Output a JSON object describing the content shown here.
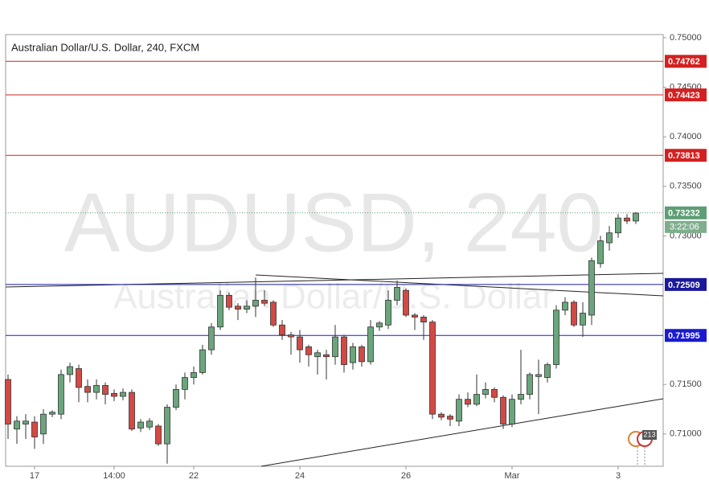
{
  "chart_data": {
    "type": "candlestick",
    "title": "Australian Dollar/U.S. Dollar, 240, FXCM",
    "watermark": "AUDUSD, 240",
    "watermark_subtitle": "Australian Dollar/U.S. Dollar",
    "up_color": "#6ba57c",
    "down_color": "#d24a45",
    "categories": [
      null,
      null,
      null,
      "17",
      null,
      null,
      null,
      null,
      null,
      null,
      null,
      null,
      "14:00",
      null,
      null,
      null,
      null,
      null,
      null,
      null,
      null,
      "22",
      null,
      null,
      null,
      null,
      null,
      null,
      null,
      null,
      null,
      null,
      null,
      "24",
      null,
      null,
      null,
      null,
      null,
      null,
      null,
      null,
      null,
      null,
      null,
      "26",
      null,
      null,
      null,
      null,
      null,
      null,
      null,
      null,
      null,
      null,
      null,
      "Mar",
      null,
      null,
      null,
      null,
      null,
      null,
      null,
      null,
      null,
      null,
      null,
      "3",
      null,
      null
    ],
    "open": [
      0.7155,
      0.7105,
      0.711,
      0.7112,
      0.71,
      0.712,
      0.712,
      0.716,
      0.7166,
      0.7148,
      0.7142,
      0.7149,
      0.7141,
      0.7138,
      0.7142,
      0.7106,
      0.7107,
      0.7108,
      0.709,
      0.7127,
      0.7145,
      0.7157,
      0.7162,
      0.7185,
      0.7208,
      0.724,
      0.7229,
      0.7226,
      0.7229,
      0.7235,
      0.7233,
      0.721,
      0.72,
      0.7198,
      0.7188,
      0.7178,
      0.718,
      0.7178,
      0.7198,
      0.7172,
      0.7188,
      0.7173,
      0.7208,
      0.721,
      0.7235,
      0.7245,
      0.722,
      0.7218,
      0.7213,
      0.712,
      0.7118,
      0.7113,
      0.7135,
      0.713,
      0.714,
      0.7145,
      0.7137,
      0.711,
      0.7135,
      0.714,
      0.7158,
      0.7157,
      0.717,
      0.7225,
      0.7233,
      0.721,
      0.722,
      0.7272,
      0.7293,
      0.7303,
      0.7318,
      0.7315
    ],
    "high": [
      0.716,
      0.7118,
      0.712,
      0.7118,
      0.7125,
      0.7124,
      0.7165,
      0.7172,
      0.717,
      0.7155,
      0.7155,
      0.7152,
      0.7145,
      0.7146,
      0.7145,
      0.7115,
      0.7116,
      0.711,
      0.713,
      0.715,
      0.7162,
      0.7168,
      0.719,
      0.7212,
      0.7245,
      0.7243,
      0.7232,
      0.7235,
      0.7258,
      0.7245,
      0.7235,
      0.7215,
      0.7203,
      0.7205,
      0.719,
      0.7185,
      0.7185,
      0.721,
      0.72,
      0.7192,
      0.719,
      0.7215,
      0.7214,
      0.7245,
      0.7255,
      0.7247,
      0.7222,
      0.722,
      0.7215,
      0.7122,
      0.712,
      0.714,
      0.7142,
      0.716,
      0.7152,
      0.7147,
      0.7139,
      0.714,
      0.7185,
      0.7162,
      0.7175,
      0.7172,
      0.723,
      0.7238,
      0.7235,
      0.7233,
      0.7278,
      0.73,
      0.731,
      0.7322,
      0.7322,
      0.7324
    ],
    "low": [
      0.7095,
      0.709,
      0.7095,
      0.7085,
      0.709,
      0.7117,
      0.7115,
      0.7152,
      0.7132,
      0.7132,
      0.7135,
      0.713,
      0.7133,
      0.7134,
      0.7103,
      0.7102,
      0.7104,
      0.7088,
      0.707,
      0.7124,
      0.7135,
      0.715,
      0.716,
      0.718,
      0.7205,
      0.7225,
      0.7215,
      0.7222,
      0.7218,
      0.7229,
      0.7208,
      0.7195,
      0.718,
      0.7172,
      0.7168,
      0.716,
      0.7155,
      0.717,
      0.7162,
      0.7165,
      0.7168,
      0.717,
      0.7204,
      0.7206,
      0.723,
      0.7218,
      0.7205,
      0.7195,
      0.7115,
      0.7114,
      0.7108,
      0.7108,
      0.7127,
      0.7128,
      0.7136,
      0.7132,
      0.7105,
      0.7107,
      0.713,
      0.7135,
      0.712,
      0.7152,
      0.7166,
      0.722,
      0.7208,
      0.7198,
      0.721,
      0.7268,
      0.7285,
      0.7298,
      0.7312,
      0.7312
    ],
    "close": [
      0.711,
      0.7113,
      0.7113,
      0.7097,
      0.712,
      0.7122,
      0.716,
      0.7168,
      0.7147,
      0.7142,
      0.7149,
      0.714,
      0.7138,
      0.7142,
      0.7105,
      0.7112,
      0.7113,
      0.709,
      0.7127,
      0.7145,
      0.7157,
      0.7162,
      0.7185,
      0.7208,
      0.724,
      0.7228,
      0.7226,
      0.7229,
      0.7235,
      0.7232,
      0.721,
      0.72,
      0.7198,
      0.7185,
      0.718,
      0.7182,
      0.7178,
      0.7198,
      0.717,
      0.7188,
      0.7173,
      0.7208,
      0.7212,
      0.7235,
      0.7248,
      0.722,
      0.7218,
      0.7213,
      0.712,
      0.7117,
      0.7115,
      0.7135,
      0.713,
      0.714,
      0.7145,
      0.7137,
      0.711,
      0.7135,
      0.714,
      0.716,
      0.716,
      0.717,
      0.7225,
      0.7233,
      0.721,
      0.7222,
      0.7275,
      0.7295,
      0.7303,
      0.7318,
      0.7315,
      0.7323
    ],
    "ylim": [
      0.70674,
      0.75032
    ],
    "yticks": [
      {
        "value": 0.75,
        "label": "0.75000"
      },
      {
        "value": 0.745,
        "label": "0.74500"
      },
      {
        "value": 0.74,
        "label": "0.74000"
      },
      {
        "value": 0.735,
        "label": "0.73500"
      },
      {
        "value": 0.73,
        "label": "0.73000"
      },
      {
        "value": 0.715,
        "label": "0.71500"
      },
      {
        "value": 0.71,
        "label": "0.71000"
      }
    ],
    "levels": [
      {
        "value": 0.74762,
        "color": "#d42020"
      },
      {
        "value": 0.74423,
        "color": "#d42020"
      },
      {
        "value": 0.73813,
        "color": "#d42020"
      },
      {
        "value": 0.72509,
        "color": "#1a1a9a"
      },
      {
        "value": 0.71995,
        "color": "#1a1ad0"
      }
    ],
    "last_price": {
      "value": 0.73232,
      "color": "#5e9e74"
    },
    "countdown": "3:22:06",
    "events_badge": "213"
  }
}
